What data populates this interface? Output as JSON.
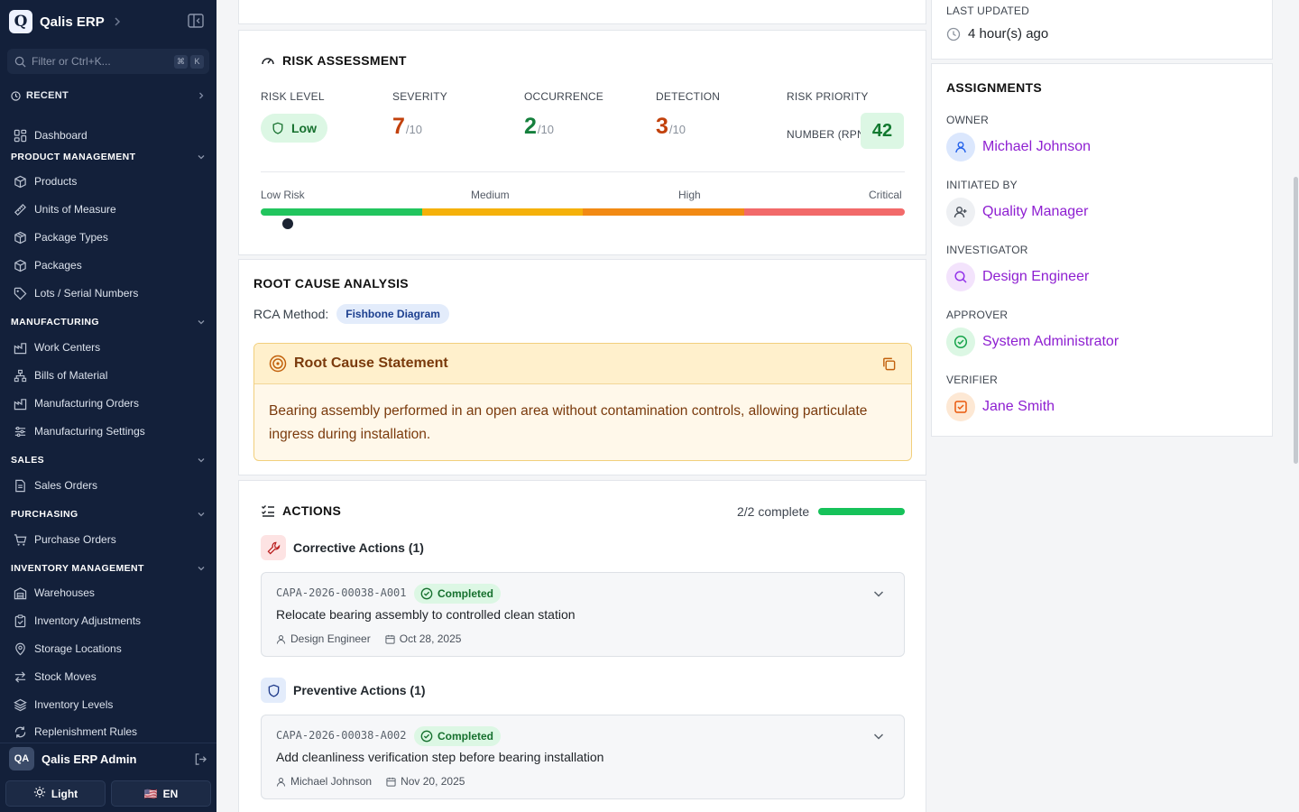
{
  "sidebar": {
    "brand_logo": "Q",
    "brand_name": "Qalis ERP",
    "search_placeholder": "Filter or Ctrl+K...",
    "shortcut_key1": "⌘",
    "shortcut_key2": "K",
    "recent_label": "RECENT",
    "dashboard_label": "Dashboard",
    "sections": {
      "product_management": "PRODUCT MANAGEMENT",
      "manufacturing": "MANUFACTURING",
      "sales": "SALES",
      "purchasing": "PURCHASING",
      "inventory_management": "INVENTORY MANAGEMENT"
    },
    "items": {
      "products": "Products",
      "units_of_measure": "Units of Measure",
      "package_types": "Package Types",
      "packages": "Packages",
      "lots_serial": "Lots / Serial Numbers",
      "work_centers": "Work Centers",
      "bills_of_material": "Bills of Material",
      "manufacturing_orders": "Manufacturing Orders",
      "manufacturing_settings": "Manufacturing Settings",
      "sales_orders": "Sales Orders",
      "purchase_orders": "Purchase Orders",
      "warehouses": "Warehouses",
      "inventory_adjustments": "Inventory Adjustments",
      "storage_locations": "Storage Locations",
      "stock_moves": "Stock Moves",
      "inventory_levels": "Inventory Levels",
      "replenishment_rules": "Replenishment Rules"
    },
    "user_initials": "QA",
    "user_name": "Qalis ERP Admin",
    "theme_label": "Light",
    "language_flag": "🇺🇸",
    "language_label": "EN"
  },
  "risk": {
    "title": "RISK ASSESSMENT",
    "risk_level_label": "RISK LEVEL",
    "risk_level_value": "Low",
    "severity_label": "SEVERITY",
    "severity_value": "7",
    "occurrence_label": "OCCURRENCE",
    "occurrence_value": "2",
    "detection_label": "DETECTION",
    "detection_value": "3",
    "score_suffix": "/10",
    "rpn_label_line1": "RISK PRIORITY",
    "rpn_label_line2": "NUMBER (RPN)",
    "rpn_value": "42",
    "scale_labels": [
      "Low Risk",
      "Medium",
      "High",
      "Critical"
    ],
    "scale_position": 0.042,
    "colors": {
      "low": "#22c55e",
      "medium": "#f5b10a",
      "high": "#f28a14",
      "critical": "#f26a6a",
      "severity": "#c2410c",
      "occurrence": "#15803d",
      "detection": "#c2410c"
    }
  },
  "rca": {
    "title": "ROOT CAUSE ANALYSIS",
    "method_label": "RCA Method:",
    "method_value": "Fishbone Diagram",
    "statement_title": "Root Cause Statement",
    "statement_text": "Bearing assembly performed in an open area without contamination controls, allowing particulate ingress during installation."
  },
  "actions": {
    "title": "ACTIONS",
    "progress_text": "2/2 complete",
    "progress_fraction": 1.0,
    "corrective_label": "Corrective Actions (1)",
    "preventive_label": "Preventive Actions (1)",
    "items": [
      {
        "id": "CAPA-2026-00038-A001",
        "status": "Completed",
        "title": "Relocate bearing assembly to controlled clean station",
        "assignee": "Design Engineer",
        "date": "Oct 28, 2025"
      },
      {
        "id": "CAPA-2026-00038-A002",
        "status": "Completed",
        "title": "Add cleanliness verification step before bearing installation",
        "assignee": "Michael Johnson",
        "date": "Nov 20, 2025"
      }
    ]
  },
  "meta": {
    "last_updated_label": "LAST UPDATED",
    "last_updated_value": "4 hour(s) ago"
  },
  "assignments": {
    "title": "ASSIGNMENTS",
    "owner_label": "OWNER",
    "owner_name": "Michael Johnson",
    "initiated_label": "INITIATED BY",
    "initiated_name": "Quality Manager",
    "investigator_label": "INVESTIGATOR",
    "investigator_name": "Design Engineer",
    "approver_label": "APPROVER",
    "approver_name": "System Administrator",
    "verifier_label": "VERIFIER",
    "verifier_name": "Jane Smith"
  }
}
